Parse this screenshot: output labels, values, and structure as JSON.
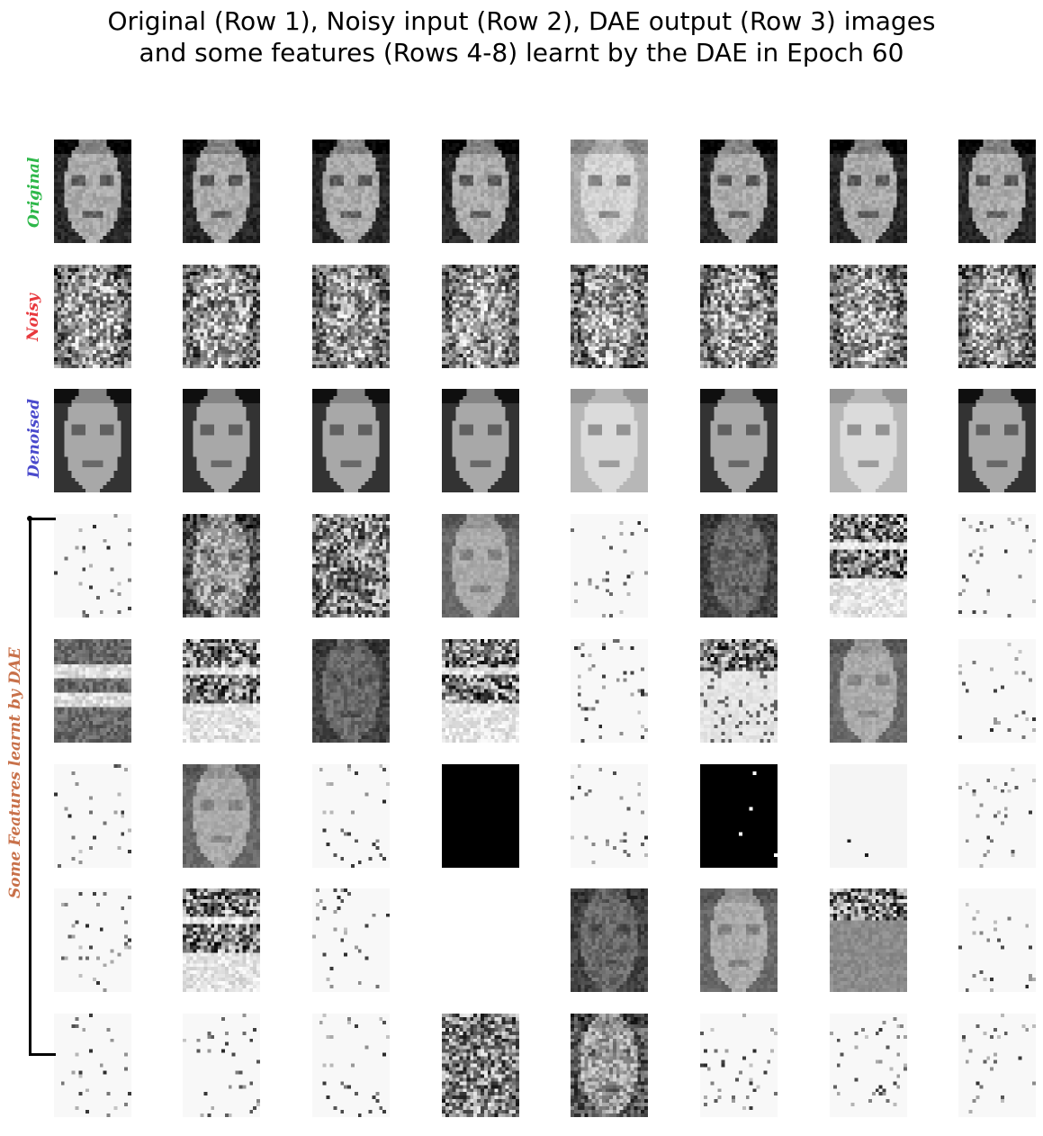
{
  "title": {
    "line1": "Original (Row 1), Noisy input (Row 2), DAE output (Row 3) images",
    "line2": "and some features (Rows 4-8) learnt by the DAE in Epoch 60"
  },
  "row_labels": {
    "original": {
      "text": "Original",
      "color": "#2eb84a"
    },
    "noisy": {
      "text": "Noisy",
      "color": "#e8383d"
    },
    "denoised": {
      "text": "Denoised",
      "color": "#4a4acc"
    },
    "features": {
      "text": "Some Features learnt by DAE",
      "color": "#c8714a"
    }
  },
  "grid": {
    "rows": 8,
    "cols": 8,
    "tiles": [
      [
        "face",
        "face",
        "face",
        "face",
        "face-light",
        "face",
        "face",
        "face"
      ],
      [
        "noise",
        "noise",
        "noise",
        "noise",
        "noise",
        "noise",
        "noise",
        "noise"
      ],
      [
        "blur-face",
        "blur-face",
        "blur-face",
        "blur-face",
        "blur-face-light",
        "blur-face",
        "blur-face-light",
        "blur-face"
      ],
      [
        "sparse",
        "face-noise",
        "dense-noise",
        "gray-face",
        "sparse",
        "dark-face",
        "band-noise",
        "sparse"
      ],
      [
        "banded-dark",
        "band-noise",
        "dark-face",
        "band-noise",
        "sparse",
        "light-band",
        "gray-face",
        "sparse"
      ],
      [
        "sparse",
        "gray-face",
        "sparse",
        "black",
        "sparse",
        "black",
        "near-white",
        "sparse"
      ],
      [
        "sparse",
        "band-noise",
        "sparse",
        "blank",
        "dark-face",
        "gray-face",
        "gray-band",
        "sparse"
      ],
      [
        "sparse",
        "sparse",
        "sparse",
        "dense-noise",
        "face-noise",
        "sparse",
        "sparse",
        "sparse"
      ]
    ]
  }
}
